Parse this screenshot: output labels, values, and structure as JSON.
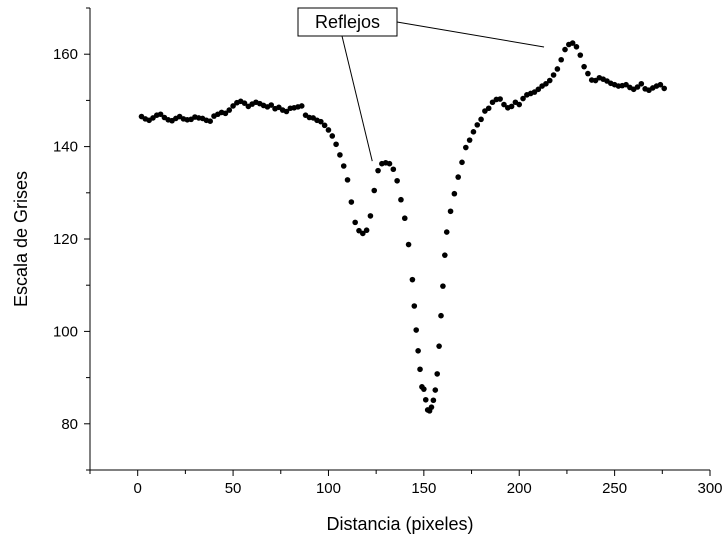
{
  "chart_data": {
    "type": "scatter",
    "xlabel": "Distancia (pixeles)",
    "ylabel": "Escala de Grises",
    "xlim": [
      -25,
      300
    ],
    "ylim": [
      70,
      170
    ],
    "xticks": [
      0,
      50,
      100,
      150,
      200,
      250,
      300
    ],
    "yticks": [
      80,
      100,
      120,
      140,
      160
    ],
    "grid": false,
    "marker_color": "#000000",
    "annotation": {
      "text": "Reflejos",
      "targets": [
        [
          124,
          136
        ],
        [
          213,
          162
        ]
      ]
    },
    "series": [
      {
        "points": [
          [
            2,
            146.5
          ],
          [
            4,
            146
          ],
          [
            6,
            145.7
          ],
          [
            8,
            146.2
          ],
          [
            10,
            146.8
          ],
          [
            12,
            147
          ],
          [
            14,
            146.3
          ],
          [
            16,
            145.8
          ],
          [
            18,
            145.6
          ],
          [
            20,
            146.1
          ],
          [
            22,
            146.5
          ],
          [
            24,
            146
          ],
          [
            26,
            145.8
          ],
          [
            28,
            145.9
          ],
          [
            30,
            146.4
          ],
          [
            32,
            146.2
          ],
          [
            34,
            146.1
          ],
          [
            36,
            145.7
          ],
          [
            38,
            145.5
          ],
          [
            40,
            146.6
          ],
          [
            42,
            147
          ],
          [
            44,
            147.4
          ],
          [
            46,
            147.2
          ],
          [
            48,
            147.9
          ],
          [
            50,
            148.8
          ],
          [
            52,
            149.5
          ],
          [
            54,
            149.8
          ],
          [
            56,
            149.4
          ],
          [
            58,
            148.7
          ],
          [
            60,
            149.2
          ],
          [
            62,
            149.6
          ],
          [
            64,
            149.3
          ],
          [
            66,
            148.9
          ],
          [
            68,
            148.6
          ],
          [
            70,
            149
          ],
          [
            72,
            148.2
          ],
          [
            74,
            148.5
          ],
          [
            76,
            147.9
          ],
          [
            78,
            147.6
          ],
          [
            80,
            148.3
          ],
          [
            82,
            148.4
          ],
          [
            84,
            148.6
          ],
          [
            86,
            148.8
          ],
          [
            88,
            146.8
          ],
          [
            90,
            146.3
          ],
          [
            92,
            146.2
          ],
          [
            94,
            145.7
          ],
          [
            96,
            145.4
          ],
          [
            98,
            144.6
          ],
          [
            100,
            143.6
          ],
          [
            102,
            142.3
          ],
          [
            104,
            140.5
          ],
          [
            106,
            138.2
          ],
          [
            108,
            135.8
          ],
          [
            110,
            132.8
          ],
          [
            112,
            128
          ],
          [
            114,
            123.6
          ],
          [
            116,
            121.8
          ],
          [
            118,
            121.2
          ],
          [
            120,
            121.9
          ],
          [
            122,
            125
          ],
          [
            124,
            130.5
          ],
          [
            126,
            134.8
          ],
          [
            128,
            136.3
          ],
          [
            130,
            136.5
          ],
          [
            132,
            136.3
          ],
          [
            134,
            135.1
          ],
          [
            136,
            132.6
          ],
          [
            138,
            128.5
          ],
          [
            140,
            124.5
          ],
          [
            142,
            118.8
          ],
          [
            144,
            111.2
          ],
          [
            145,
            105.5
          ],
          [
            146,
            100.3
          ],
          [
            147,
            95.8
          ],
          [
            148,
            91.8
          ],
          [
            149,
            88
          ],
          [
            150,
            87.5
          ],
          [
            151,
            85.2
          ],
          [
            152,
            83
          ],
          [
            153,
            82.8
          ],
          [
            154,
            83.6
          ],
          [
            155,
            85.1
          ],
          [
            156,
            87.3
          ],
          [
            157,
            90.8
          ],
          [
            158,
            96.8
          ],
          [
            159,
            103.4
          ],
          [
            160,
            109.8
          ],
          [
            161,
            116.5
          ],
          [
            162,
            121.5
          ],
          [
            164,
            126
          ],
          [
            166,
            129.8
          ],
          [
            168,
            133.4
          ],
          [
            170,
            136.6
          ],
          [
            172,
            139.8
          ],
          [
            174,
            141.4
          ],
          [
            176,
            143.2
          ],
          [
            178,
            144.7
          ],
          [
            180,
            145.9
          ],
          [
            182,
            147.7
          ],
          [
            184,
            148.3
          ],
          [
            186,
            149.6
          ],
          [
            188,
            150.2
          ],
          [
            190,
            150.3
          ],
          [
            192,
            149.1
          ],
          [
            194,
            148.4
          ],
          [
            196,
            148.7
          ],
          [
            198,
            149.6
          ],
          [
            200,
            149.1
          ],
          [
            202,
            150.4
          ],
          [
            204,
            151.2
          ],
          [
            206,
            151.5
          ],
          [
            208,
            151.8
          ],
          [
            210,
            152.4
          ],
          [
            212,
            153.1
          ],
          [
            214,
            153.6
          ],
          [
            216,
            154.3
          ],
          [
            218,
            155.5
          ],
          [
            220,
            156.8
          ],
          [
            222,
            158.8
          ],
          [
            224,
            161
          ],
          [
            226,
            162.1
          ],
          [
            228,
            162.4
          ],
          [
            230,
            161.6
          ],
          [
            232,
            159.8
          ],
          [
            234,
            157.3
          ],
          [
            236,
            155.8
          ],
          [
            238,
            154.4
          ],
          [
            240,
            154.3
          ],
          [
            242,
            154.9
          ],
          [
            244,
            154.6
          ],
          [
            246,
            154.2
          ],
          [
            248,
            153.7
          ],
          [
            250,
            153.4
          ],
          [
            252,
            153.1
          ],
          [
            254,
            153.2
          ],
          [
            256,
            153.4
          ],
          [
            258,
            152.8
          ],
          [
            260,
            152.4
          ],
          [
            262,
            152.9
          ],
          [
            264,
            153.6
          ],
          [
            266,
            152.5
          ],
          [
            268,
            152.2
          ],
          [
            270,
            152.7
          ],
          [
            272,
            153.1
          ],
          [
            274,
            153.4
          ],
          [
            276,
            152.6
          ]
        ]
      }
    ]
  }
}
